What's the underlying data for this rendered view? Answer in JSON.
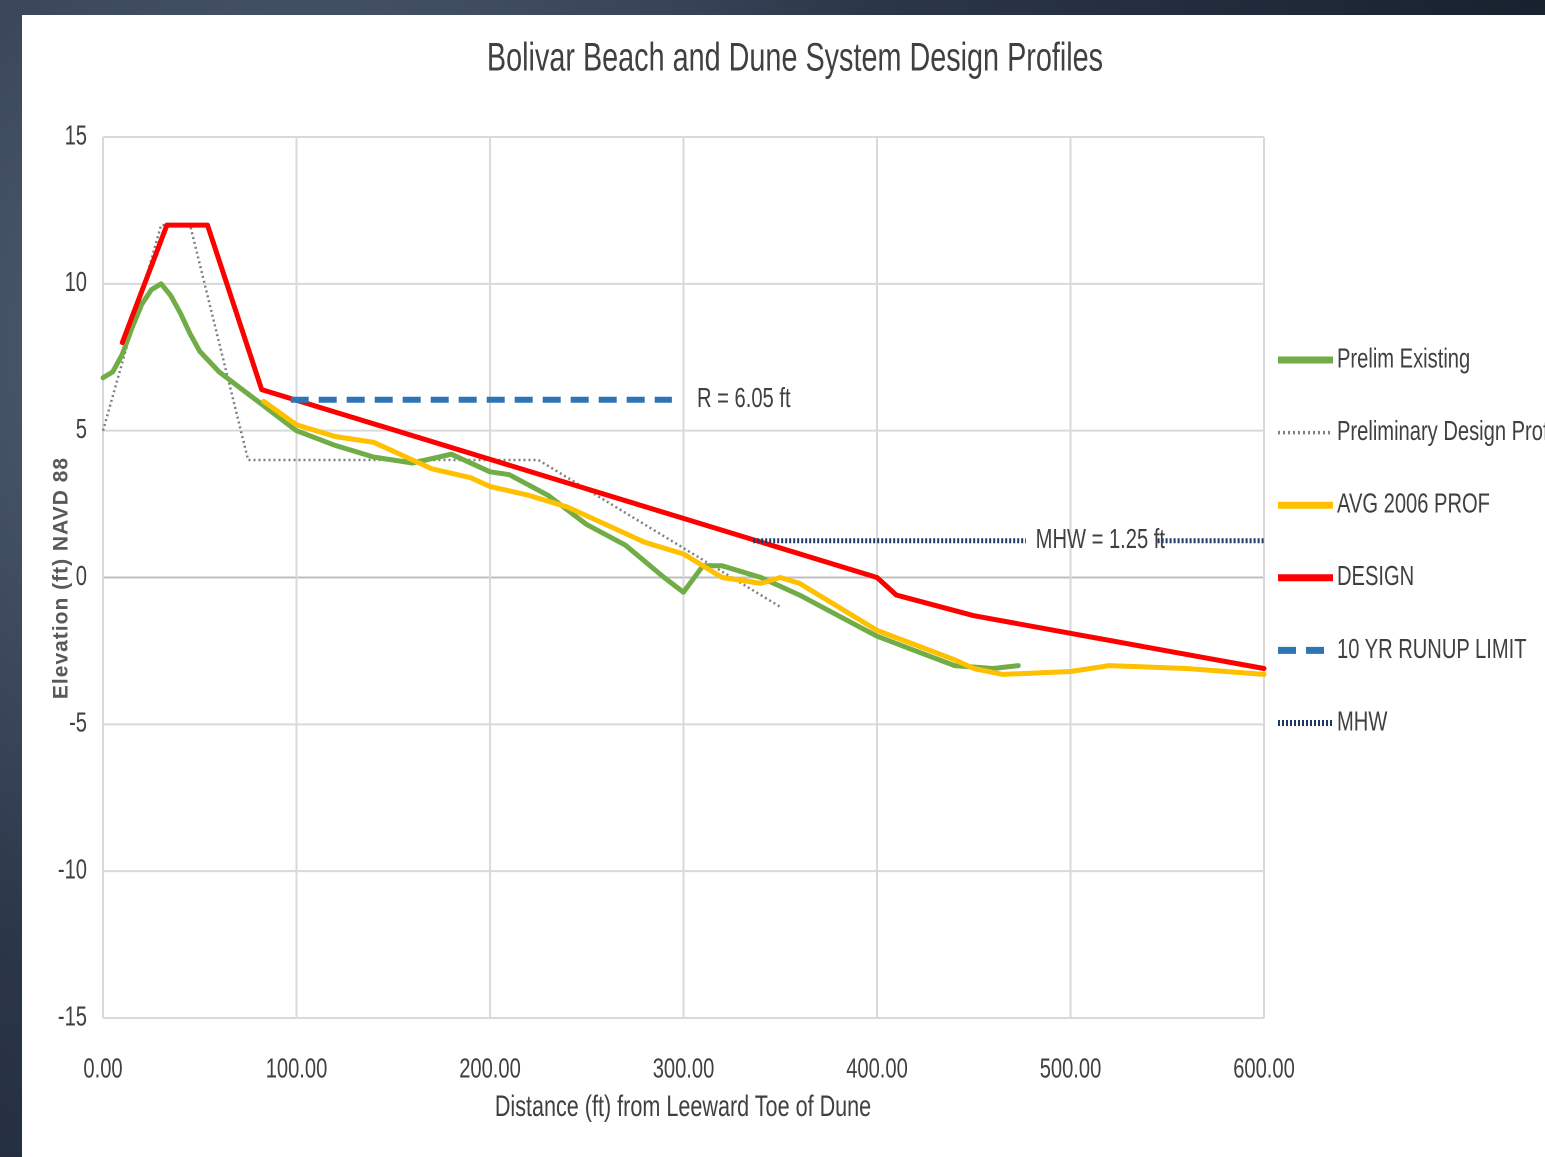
{
  "chart_data": {
    "type": "line",
    "title": "Bolivar Beach and Dune System Design Profiles",
    "x_label": "Distance (ft) from Leeward Toe of Dune",
    "y_label": "Elevation (ft) NAVD 88",
    "xlim": [
      0,
      600
    ],
    "xticks": [
      {
        "value": 0,
        "label": "0.00"
      },
      {
        "value": 100,
        "label": "100.00"
      },
      {
        "value": 200,
        "label": "200.00"
      },
      {
        "value": 300,
        "label": "300.00"
      },
      {
        "value": 400,
        "label": "400.00"
      },
      {
        "value": 500,
        "label": "500.00"
      },
      {
        "value": 600,
        "label": "600.00"
      }
    ],
    "ylim": [
      -15,
      15
    ],
    "yticks": [
      15,
      10,
      5,
      0,
      -5,
      -10,
      -15
    ],
    "grid": true,
    "legend": "right",
    "annotations": [
      {
        "text": "R = 6.05 ft",
        "x": 307,
        "y": 6.05
      },
      {
        "text": "MHW = 1.25 ft",
        "x": 482,
        "y": 1.25
      }
    ],
    "series": [
      {
        "name": "Prelim Existing",
        "color": "#70ad47",
        "line_style": "solid",
        "x": [
          0,
          5,
          10,
          15,
          20,
          25,
          30,
          35,
          40,
          45,
          50,
          60,
          70,
          80,
          90,
          100,
          120,
          140,
          160,
          180,
          200,
          210,
          230,
          250,
          270,
          290,
          300,
          310,
          320,
          340,
          360,
          380,
          400,
          420,
          440,
          460,
          473
        ],
        "values": [
          6.8,
          7.0,
          7.6,
          8.5,
          9.3,
          9.8,
          10.0,
          9.6,
          9.0,
          8.3,
          7.7,
          7.0,
          6.5,
          6.0,
          5.5,
          5.0,
          4.5,
          4.1,
          3.9,
          4.2,
          3.6,
          3.5,
          2.8,
          1.8,
          1.1,
          0.0,
          -0.5,
          0.4,
          0.4,
          0.0,
          -0.6,
          -1.3,
          -2.0,
          -2.5,
          -3.0,
          -3.1,
          -3.0
        ]
      },
      {
        "name": "Preliminary Design Profile",
        "color": "#7f7f7f",
        "line_style": "dotted-thin",
        "x": [
          0,
          30,
          45,
          75,
          225,
          300,
          350
        ],
        "values": [
          5,
          12,
          12,
          4,
          4,
          1,
          -1
        ]
      },
      {
        "name": "AVG 2006 PROF",
        "color": "#ffc000",
        "line_style": "solid",
        "x": [
          83,
          100,
          120,
          140,
          160,
          170,
          190,
          200,
          220,
          240,
          260,
          280,
          300,
          320,
          340,
          350,
          360,
          380,
          400,
          420,
          440,
          450,
          465,
          500,
          520,
          560,
          600
        ],
        "values": [
          6.0,
          5.2,
          4.8,
          4.6,
          4.0,
          3.7,
          3.4,
          3.1,
          2.8,
          2.4,
          1.8,
          1.2,
          0.8,
          0.0,
          -0.2,
          0.0,
          -0.2,
          -1.0,
          -1.8,
          -2.3,
          -2.8,
          -3.1,
          -3.3,
          -3.2,
          -3.0,
          -3.1,
          -3.3
        ]
      },
      {
        "name": "DESIGN",
        "color": "#ff0000",
        "line_style": "solid",
        "x": [
          10,
          33,
          54,
          82,
          400,
          410,
          450,
          500,
          550,
          600
        ],
        "values": [
          8,
          12,
          12,
          6.4,
          0.0,
          -0.6,
          -1.3,
          -1.9,
          -2.5,
          -3.1
        ]
      },
      {
        "name": "10 YR RUNUP LIMIT",
        "color": "#2e75b6",
        "line_style": "dashed",
        "x": [
          97,
          294
        ],
        "values": [
          6.05,
          6.05
        ]
      },
      {
        "name": "MHW",
        "color": "#1f3864",
        "line_style": "dotted",
        "x": [
          336,
          477,
          490,
          545,
          600
        ],
        "values": [
          1.25,
          1.25,
          null,
          1.25,
          1.25
        ]
      }
    ]
  }
}
